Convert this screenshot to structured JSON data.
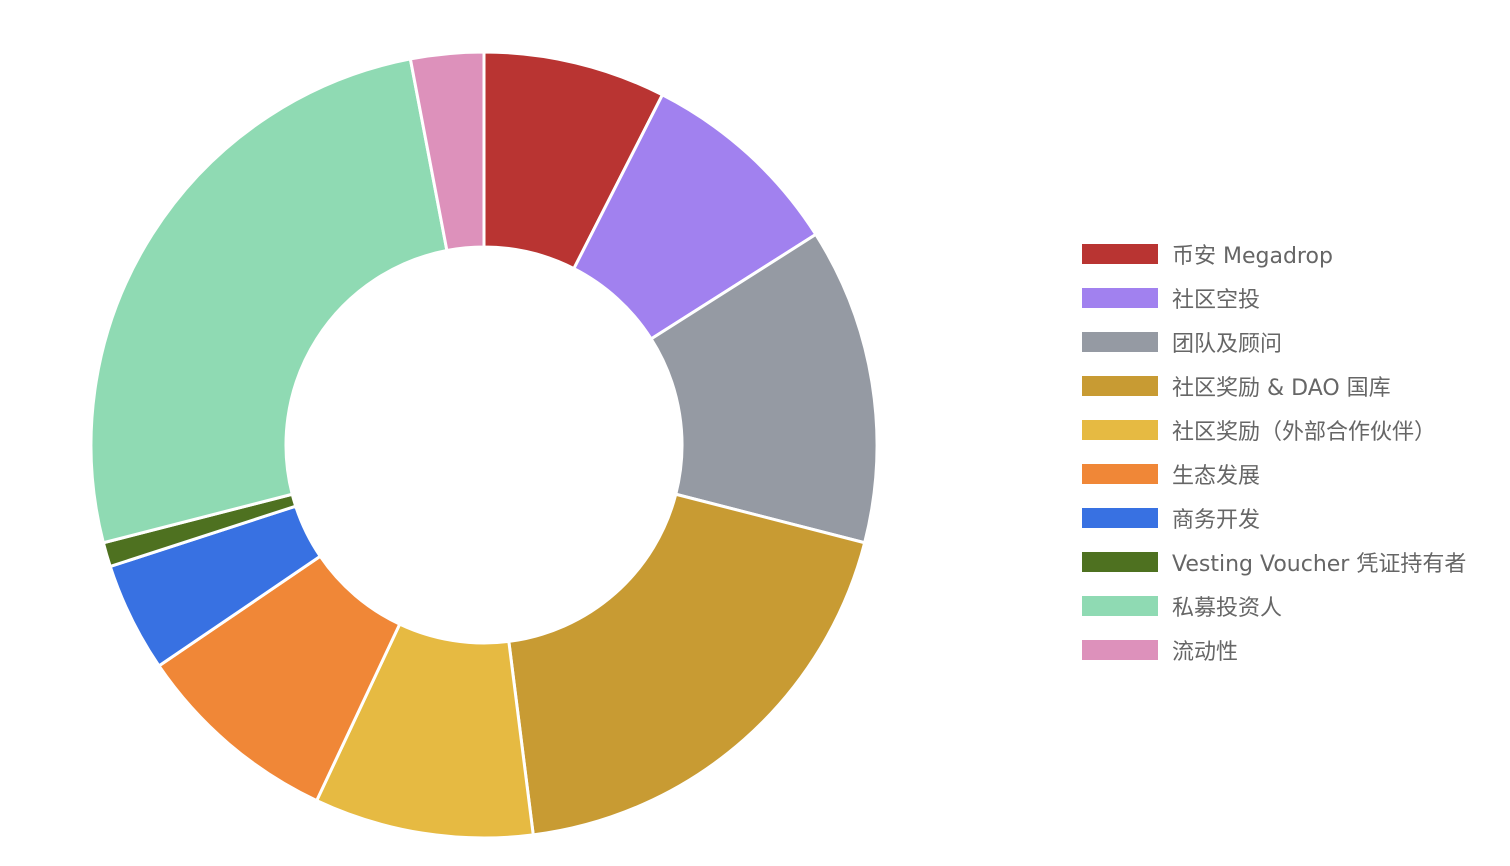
{
  "chart_data": {
    "type": "pie",
    "donut": true,
    "legend_position": "right",
    "series": [
      {
        "name": "币安 Megadrop",
        "value": 7.5,
        "color": "#b93432"
      },
      {
        "name": "社区空投",
        "value": 8.5,
        "color": "#a181ef"
      },
      {
        "name": "团队及顾问",
        "value": 13.0,
        "color": "#959aa3"
      },
      {
        "name": "社区奖励 & DAO 国库",
        "value": 19.0,
        "color": "#c89b33"
      },
      {
        "name": "社区奖励（外部合作伙伴）",
        "value": 9.0,
        "color": "#e6ba42"
      },
      {
        "name": "生态发展",
        "value": 8.5,
        "color": "#f08737"
      },
      {
        "name": "商务开发",
        "value": 4.5,
        "color": "#3871e2"
      },
      {
        "name": "Vesting Voucher 凭证持有者",
        "value": 1.0,
        "color": "#4e7120"
      },
      {
        "name": "私募投资人",
        "value": 26.0,
        "color": "#8fdab3"
      },
      {
        "name": "流动性",
        "value": 3.0,
        "color": "#dd91bb"
      }
    ]
  }
}
